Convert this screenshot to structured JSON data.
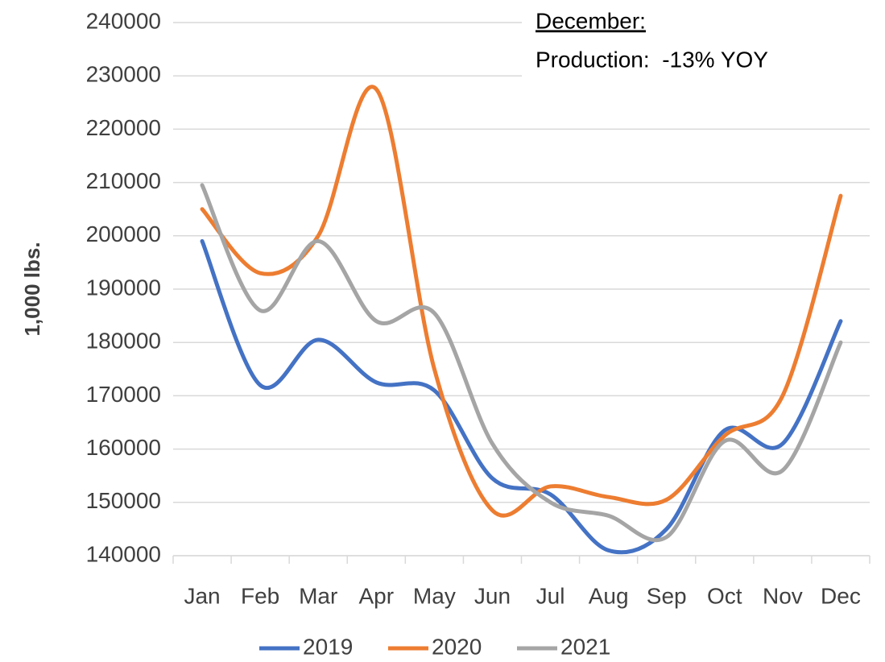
{
  "chart_data": {
    "type": "line",
    "y_label": "1,000 lbs.",
    "annotations": [
      "December:",
      "Production:  -13% YOY"
    ],
    "categories": [
      "Jan",
      "Feb",
      "Mar",
      "Apr",
      "May",
      "Jun",
      "Jul",
      "Aug",
      "Sep",
      "Oct",
      "Nov",
      "Dec"
    ],
    "series": [
      {
        "name": "2019",
        "color": "#4472c4",
        "values": [
          199000,
          172000,
          180500,
          172500,
          171000,
          154500,
          151500,
          141000,
          145000,
          163500,
          161000,
          184000
        ]
      },
      {
        "name": "2020",
        "color": "#ed7d31",
        "values": [
          205000,
          193000,
          200000,
          227500,
          175000,
          148500,
          153000,
          151000,
          150500,
          162500,
          170000,
          207500
        ]
      },
      {
        "name": "2021",
        "color": "#a5a5a5",
        "values": [
          209500,
          186000,
          199000,
          184000,
          185500,
          161000,
          150000,
          147500,
          143500,
          161500,
          156000,
          180000
        ]
      }
    ],
    "ylim": [
      140000,
      240000
    ],
    "yticks": [
      140000,
      150000,
      160000,
      170000,
      180000,
      190000,
      200000,
      210000,
      220000,
      230000,
      240000
    ],
    "grid": true,
    "smooth": true,
    "legend": "bottom"
  }
}
